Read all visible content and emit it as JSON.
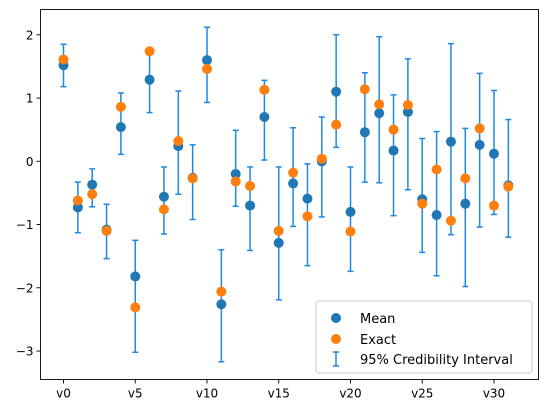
{
  "chart_data": {
    "type": "scatter",
    "title": "",
    "xlabel": "",
    "ylabel": "",
    "categories": [
      "v0",
      "v1",
      "v2",
      "v3",
      "v4",
      "v5",
      "v6",
      "v7",
      "v8",
      "v9",
      "v10",
      "v11",
      "v12",
      "v13",
      "v14",
      "v15",
      "v16",
      "v17",
      "v18",
      "v19",
      "v20",
      "v21",
      "v22",
      "v23",
      "v24",
      "v25",
      "v26",
      "v27",
      "v28",
      "v29",
      "v30",
      "v31"
    ],
    "x_tick_labels": [
      "v0",
      "v5",
      "v10",
      "v15",
      "v20",
      "v25",
      "v30"
    ],
    "y_ticks": [
      -3,
      -2,
      -1,
      0,
      1,
      2
    ],
    "ylim": [
      -3.45,
      2.4
    ],
    "grid": false,
    "legend_position": "bottom-right",
    "series": [
      {
        "name": "Mean",
        "kind": "points",
        "color": "#1f77b4",
        "values": [
          1.52,
          -0.73,
          -0.37,
          -1.08,
          0.54,
          -1.82,
          1.29,
          -0.56,
          0.24,
          -0.26,
          1.6,
          -2.26,
          -0.2,
          -0.7,
          0.7,
          -1.29,
          -0.35,
          -0.59,
          0.0,
          1.1,
          -0.8,
          0.46,
          0.76,
          0.17,
          0.78,
          -0.6,
          -0.85,
          0.31,
          -0.67,
          0.26,
          0.12,
          -0.38
        ]
      },
      {
        "name": "Exact",
        "kind": "points",
        "color": "#ff7f0e",
        "values": [
          1.61,
          -0.62,
          -0.52,
          -1.1,
          0.86,
          -2.31,
          1.74,
          -0.76,
          0.32,
          -0.27,
          1.46,
          -2.06,
          -0.32,
          -0.39,
          1.13,
          -1.1,
          -0.18,
          -0.87,
          0.04,
          0.58,
          -1.11,
          1.14,
          0.9,
          0.5,
          0.89,
          -0.67,
          -0.13,
          -0.94,
          -0.27,
          0.52,
          -0.7,
          -0.4
        ]
      },
      {
        "name": "95% Credibility Interval",
        "kind": "errorbar",
        "color": "#1e88e5",
        "lower": [
          1.18,
          -1.13,
          -0.72,
          -1.54,
          0.11,
          -3.02,
          0.77,
          -1.15,
          -0.52,
          -0.92,
          0.93,
          -3.17,
          -0.71,
          -1.41,
          0.02,
          -2.19,
          -1.03,
          -1.65,
          -0.88,
          0.22,
          -1.74,
          -0.33,
          -0.34,
          -0.86,
          -0.45,
          -1.44,
          -1.81,
          -1.16,
          -1.98,
          -1.04,
          -0.84,
          -1.2
        ],
        "upper": [
          1.85,
          -0.33,
          -0.12,
          -0.68,
          1.08,
          -1.25,
          1.77,
          -0.09,
          1.11,
          0.26,
          2.12,
          -1.4,
          0.49,
          -0.09,
          1.28,
          -0.09,
          0.53,
          -0.04,
          0.7,
          2.0,
          -0.09,
          1.4,
          1.97,
          1.05,
          1.62,
          0.36,
          0.47,
          1.86,
          0.52,
          1.39,
          1.12,
          0.66
        ]
      }
    ]
  }
}
